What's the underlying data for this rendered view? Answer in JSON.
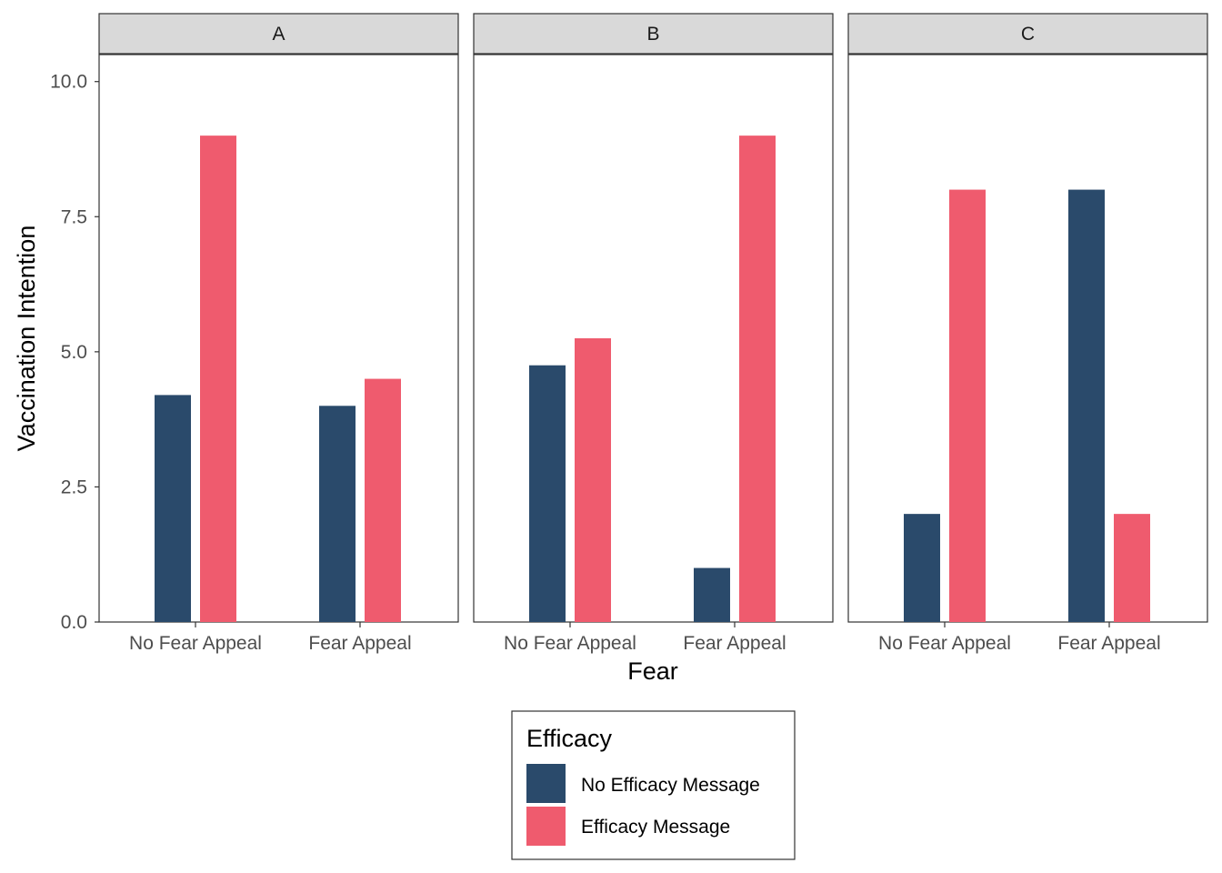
{
  "chart_data": {
    "type": "bar",
    "ylabel": "Vaccination Intention",
    "xlabel": "Fear",
    "ylim": [
      0,
      10.5
    ],
    "yticks": [
      0,
      2.5,
      5,
      7.5,
      10
    ],
    "ytick_labels": [
      "0.0",
      "2.5",
      "5.0",
      "7.5",
      "10.0"
    ],
    "categories": [
      "No Fear Appeal",
      "Fear Appeal"
    ],
    "grid": false,
    "legend": {
      "title": "Efficacy",
      "placement": "bottom",
      "entries": [
        {
          "label": "No Efficacy Message",
          "color": "#2a4a6b"
        },
        {
          "label": "Efficacy Message",
          "color": "#ef5b6e"
        }
      ]
    },
    "panels": [
      {
        "label": "A",
        "series": [
          {
            "name": "No Efficacy Message",
            "values": [
              4.2,
              4.0
            ]
          },
          {
            "name": "Efficacy Message",
            "values": [
              9.0,
              4.5
            ]
          }
        ]
      },
      {
        "label": "B",
        "series": [
          {
            "name": "No Efficacy Message",
            "values": [
              4.75,
              1.0
            ]
          },
          {
            "name": "Efficacy Message",
            "values": [
              5.25,
              9.0
            ]
          }
        ]
      },
      {
        "label": "C",
        "series": [
          {
            "name": "No Efficacy Message",
            "values": [
              2.0,
              8.0
            ]
          },
          {
            "name": "Efficacy Message",
            "values": [
              8.0,
              2.0
            ]
          }
        ]
      }
    ]
  }
}
